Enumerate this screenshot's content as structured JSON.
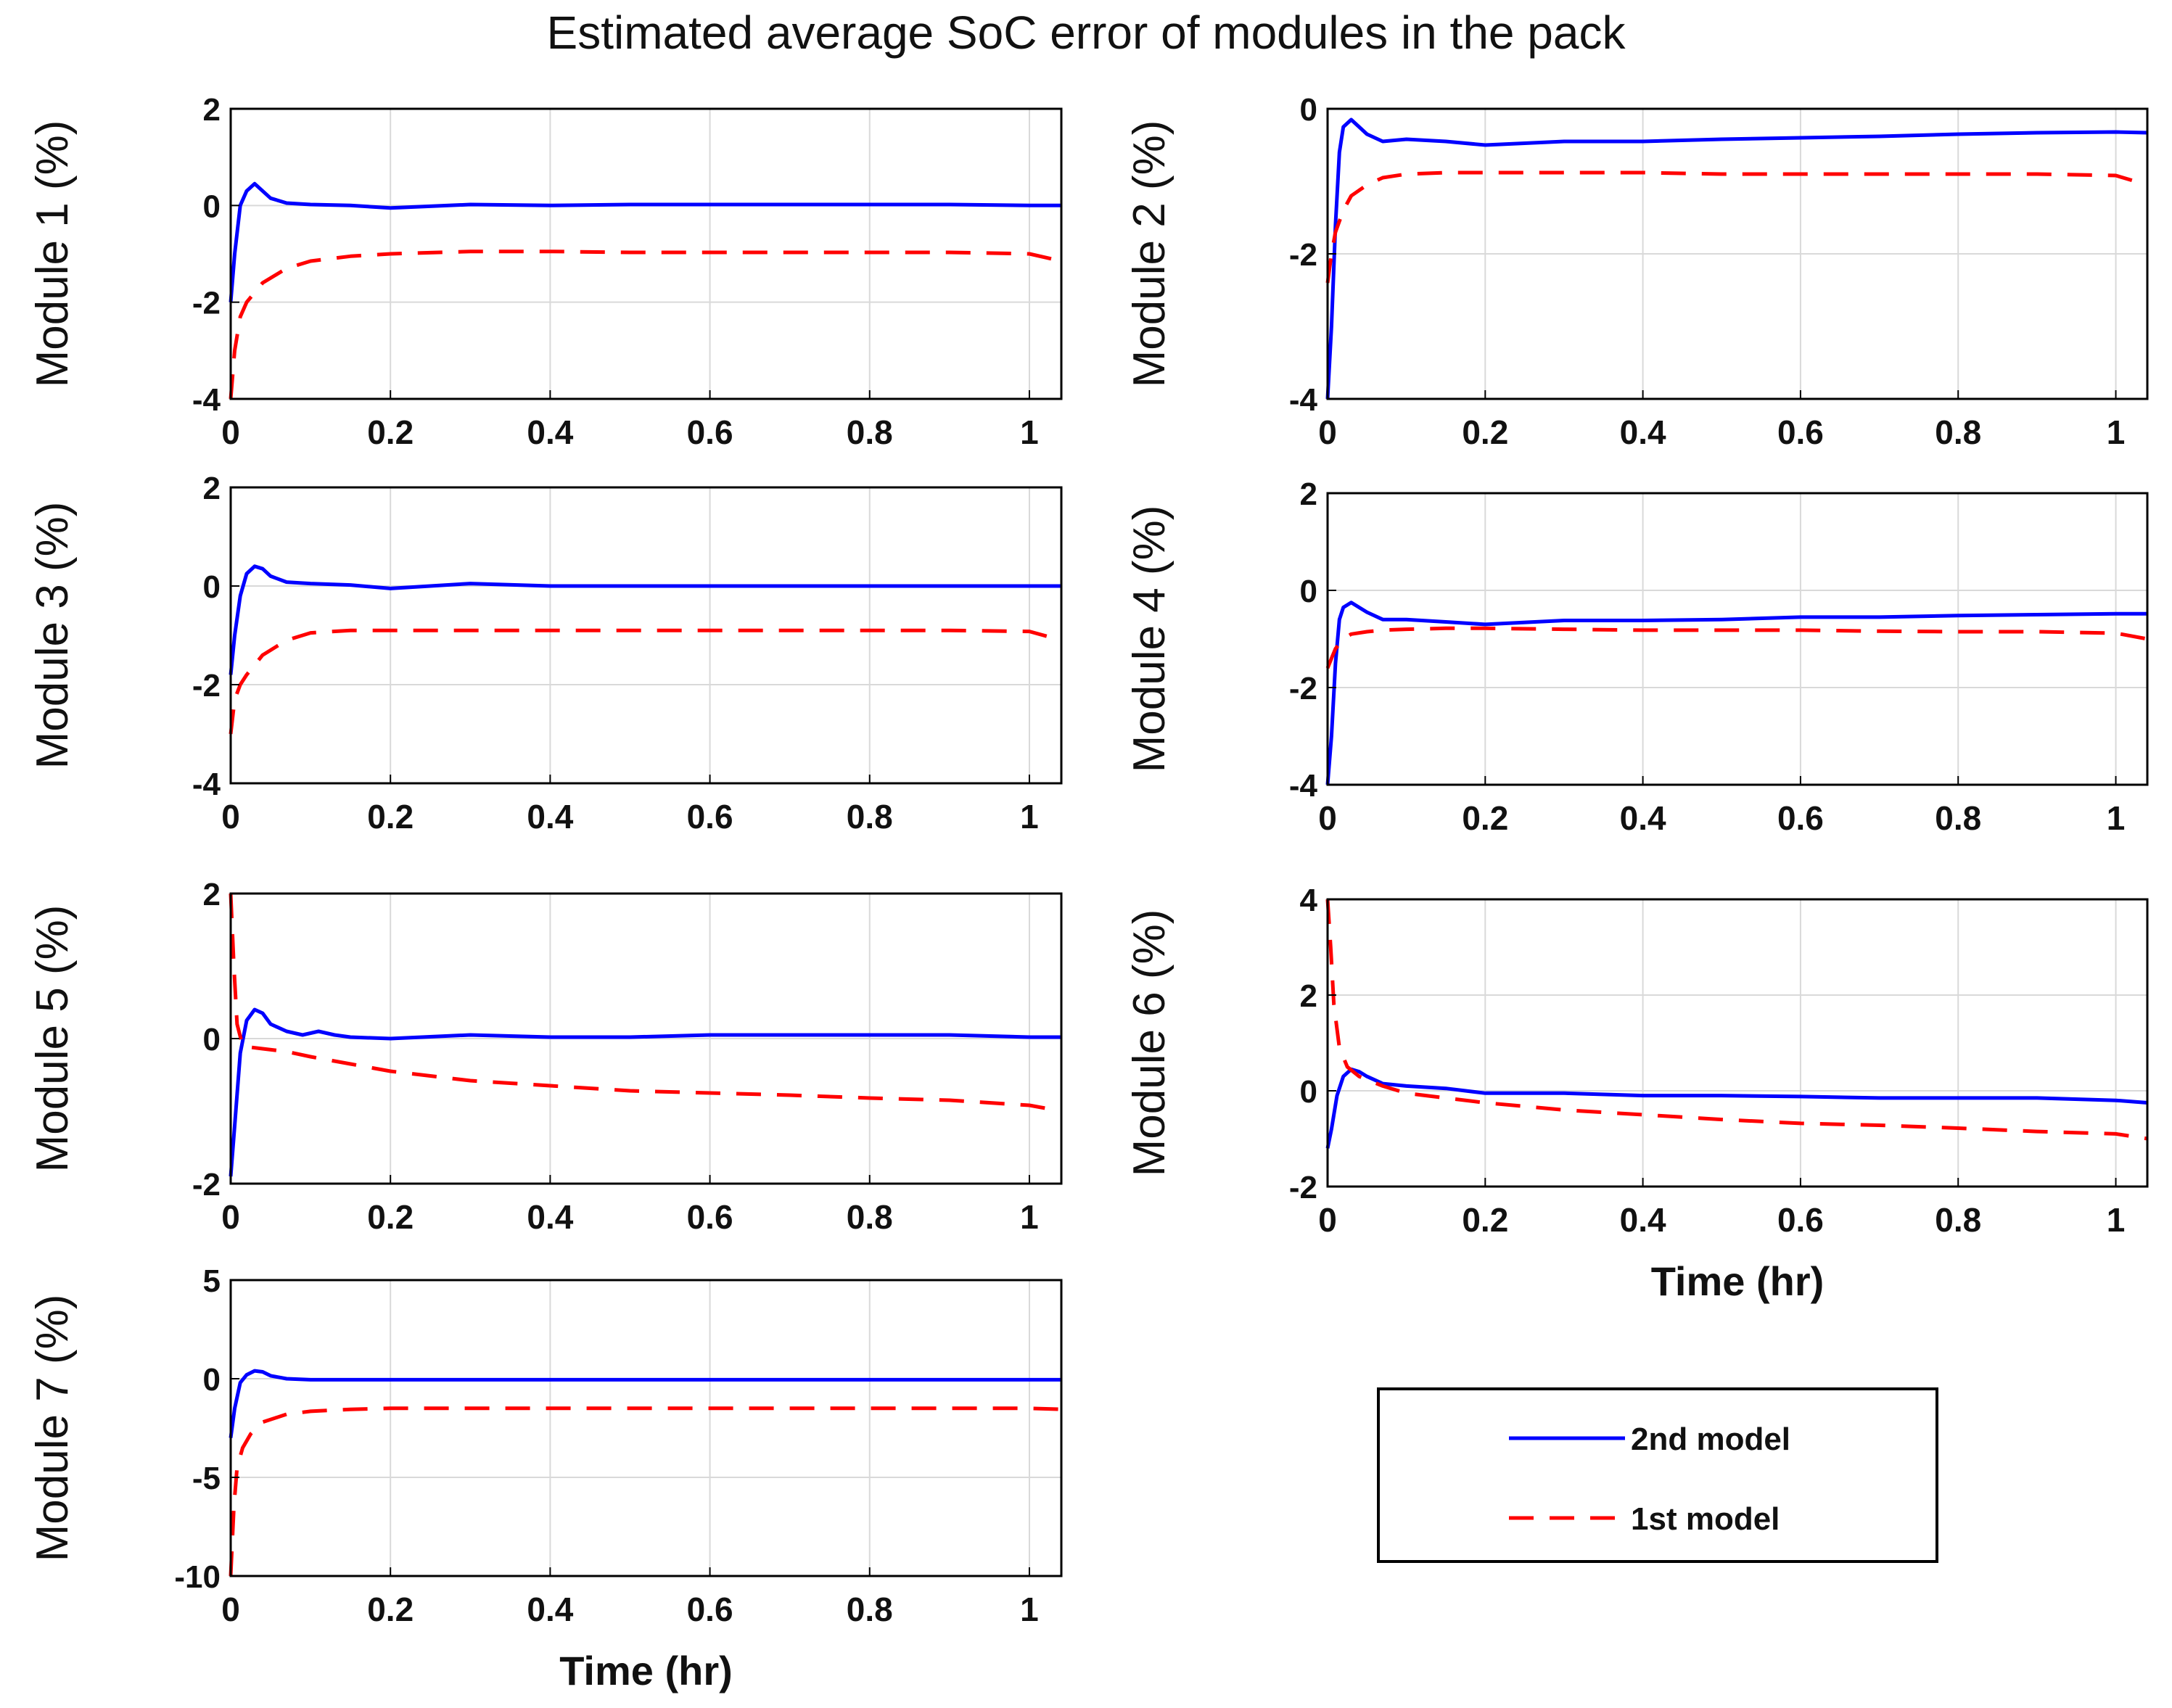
{
  "chart_data": {
    "title": "Estimated average SoC error of modules in the pack",
    "legend": {
      "placement": "bottom-right",
      "entries": [
        {
          "name": "2nd model",
          "style": "solid",
          "color": "#0000ff"
        },
        {
          "name": "1st model",
          "style": "dashed",
          "color": "#ff0000"
        }
      ]
    },
    "colors": {
      "model_2nd": "#0000ff",
      "model_1st": "#ff0000",
      "grid": "#d9d9d9",
      "axis": "#000000"
    },
    "subplots": [
      {
        "type": "line",
        "ylabel": "Module 1 (%)",
        "xlabel": "",
        "xlim": [
          0,
          1.04
        ],
        "ylim": [
          -4,
          2
        ],
        "grid": true,
        "xticks": [
          0,
          0.2,
          0.4,
          0.6,
          0.8,
          1
        ],
        "xtick_labels": [
          "0",
          "0.2",
          "0.4",
          "0.6",
          "0.8",
          "1"
        ],
        "yticks": [
          -4,
          -2,
          0,
          2
        ],
        "ytick_labels": [
          "-4",
          "-2",
          "0",
          "2"
        ],
        "series": [
          {
            "name": "2nd model",
            "x": [
              0,
              0.005,
              0.012,
              0.02,
              0.03,
              0.04,
              0.05,
              0.07,
              0.1,
              0.15,
              0.2,
              0.3,
              0.4,
              0.5,
              0.6,
              0.7,
              0.8,
              0.9,
              1.0,
              1.04
            ],
            "y": [
              -2.0,
              -1.0,
              0.0,
              0.3,
              0.45,
              0.3,
              0.15,
              0.05,
              0.02,
              0.0,
              -0.05,
              0.02,
              0.0,
              0.02,
              0.02,
              0.02,
              0.02,
              0.02,
              0.0,
              0.0
            ]
          },
          {
            "name": "1st model",
            "x": [
              0,
              0.005,
              0.012,
              0.02,
              0.04,
              0.07,
              0.1,
              0.15,
              0.2,
              0.3,
              0.4,
              0.5,
              0.6,
              0.7,
              0.8,
              0.9,
              1.0,
              1.04
            ],
            "y": [
              -4.0,
              -3.0,
              -2.3,
              -2.0,
              -1.6,
              -1.3,
              -1.15,
              -1.05,
              -1.0,
              -0.95,
              -0.95,
              -0.97,
              -0.97,
              -0.97,
              -0.97,
              -0.97,
              -1.0,
              -1.15
            ]
          }
        ]
      },
      {
        "type": "line",
        "ylabel": "Module 2 (%)",
        "xlabel": "",
        "xlim": [
          0,
          1.04
        ],
        "ylim": [
          -4,
          0
        ],
        "grid": true,
        "xticks": [
          0,
          0.2,
          0.4,
          0.6,
          0.8,
          1
        ],
        "xtick_labels": [
          "0",
          "0.2",
          "0.4",
          "0.6",
          "0.8",
          "1"
        ],
        "yticks": [
          -4,
          -2,
          0
        ],
        "ytick_labels": [
          "-4",
          "-2",
          "0"
        ],
        "series": [
          {
            "name": "2nd model",
            "x": [
              0,
              0.005,
              0.01,
              0.015,
              0.02,
              0.03,
              0.04,
              0.05,
              0.07,
              0.1,
              0.15,
              0.2,
              0.3,
              0.4,
              0.5,
              0.6,
              0.7,
              0.8,
              0.9,
              1.0,
              1.04
            ],
            "y": [
              -4.0,
              -3.0,
              -1.6,
              -0.6,
              -0.25,
              -0.15,
              -0.25,
              -0.35,
              -0.45,
              -0.42,
              -0.45,
              -0.5,
              -0.45,
              -0.45,
              -0.42,
              -0.4,
              -0.38,
              -0.35,
              -0.33,
              -0.32,
              -0.33
            ]
          },
          {
            "name": "1st model",
            "x": [
              0,
              0.005,
              0.01,
              0.02,
              0.03,
              0.05,
              0.07,
              0.1,
              0.15,
              0.2,
              0.3,
              0.4,
              0.5,
              0.6,
              0.7,
              0.8,
              0.9,
              1.0,
              1.04
            ],
            "y": [
              -2.4,
              -2.0,
              -1.7,
              -1.4,
              -1.2,
              -1.05,
              -0.95,
              -0.9,
              -0.88,
              -0.88,
              -0.88,
              -0.88,
              -0.9,
              -0.9,
              -0.9,
              -0.9,
              -0.9,
              -0.92,
              -1.05
            ]
          }
        ]
      },
      {
        "type": "line",
        "ylabel": "Module 3 (%)",
        "xlabel": "",
        "xlim": [
          0,
          1.04
        ],
        "ylim": [
          -4,
          2
        ],
        "grid": true,
        "xticks": [
          0,
          0.2,
          0.4,
          0.6,
          0.8,
          1
        ],
        "xtick_labels": [
          "0",
          "0.2",
          "0.4",
          "0.6",
          "0.8",
          "1"
        ],
        "yticks": [
          -4,
          -2,
          0,
          2
        ],
        "ytick_labels": [
          "-4",
          "-2",
          "0",
          "2"
        ],
        "series": [
          {
            "name": "2nd model",
            "x": [
              0,
              0.005,
              0.012,
              0.02,
              0.03,
              0.04,
              0.05,
              0.07,
              0.1,
              0.15,
              0.2,
              0.3,
              0.4,
              0.5,
              0.6,
              0.7,
              0.8,
              0.9,
              1.0,
              1.04
            ],
            "y": [
              -1.8,
              -1.0,
              -0.2,
              0.25,
              0.4,
              0.35,
              0.2,
              0.08,
              0.05,
              0.02,
              -0.05,
              0.05,
              0.0,
              0.0,
              0.0,
              0.0,
              0.0,
              0.0,
              0.0,
              0.0
            ]
          },
          {
            "name": "1st model",
            "x": [
              0,
              0.005,
              0.012,
              0.02,
              0.04,
              0.07,
              0.1,
              0.15,
              0.2,
              0.3,
              0.4,
              0.5,
              0.6,
              0.7,
              0.8,
              0.9,
              1.0,
              1.04
            ],
            "y": [
              -3.0,
              -2.3,
              -2.0,
              -1.8,
              -1.4,
              -1.1,
              -0.95,
              -0.9,
              -0.9,
              -0.9,
              -0.9,
              -0.9,
              -0.9,
              -0.9,
              -0.9,
              -0.9,
              -0.92,
              -1.1
            ]
          }
        ]
      },
      {
        "type": "line",
        "ylabel": "Module 4 (%)",
        "xlabel": "",
        "xlim": [
          0,
          1.04
        ],
        "ylim": [
          -4,
          2
        ],
        "grid": true,
        "xticks": [
          0,
          0.2,
          0.4,
          0.6,
          0.8,
          1
        ],
        "xtick_labels": [
          "0",
          "0.2",
          "0.4",
          "0.6",
          "0.8",
          "1"
        ],
        "yticks": [
          -4,
          -2,
          0,
          2
        ],
        "ytick_labels": [
          "-4",
          "-2",
          "0",
          "2"
        ],
        "series": [
          {
            "name": "2nd model",
            "x": [
              0,
              0.005,
              0.01,
              0.015,
              0.02,
              0.03,
              0.04,
              0.05,
              0.07,
              0.1,
              0.15,
              0.2,
              0.3,
              0.4,
              0.5,
              0.6,
              0.7,
              0.8,
              0.9,
              1.0,
              1.04
            ],
            "y": [
              -4.0,
              -3.0,
              -1.5,
              -0.6,
              -0.35,
              -0.25,
              -0.35,
              -0.45,
              -0.6,
              -0.6,
              -0.65,
              -0.7,
              -0.62,
              -0.62,
              -0.6,
              -0.55,
              -0.55,
              -0.52,
              -0.5,
              -0.48,
              -0.48
            ]
          },
          {
            "name": "1st model",
            "x": [
              0,
              0.005,
              0.01,
              0.02,
              0.03,
              0.05,
              0.07,
              0.1,
              0.15,
              0.2,
              0.3,
              0.4,
              0.5,
              0.6,
              0.7,
              0.8,
              0.9,
              1.0,
              1.04
            ],
            "y": [
              -1.6,
              -1.4,
              -1.2,
              -1.0,
              -0.9,
              -0.85,
              -0.82,
              -0.8,
              -0.78,
              -0.78,
              -0.8,
              -0.82,
              -0.82,
              -0.82,
              -0.84,
              -0.85,
              -0.85,
              -0.88,
              -1.0
            ]
          }
        ]
      },
      {
        "type": "line",
        "ylabel": "Module 5 (%)",
        "xlabel": "",
        "xlim": [
          0,
          1.04
        ],
        "ylim": [
          -2,
          2
        ],
        "grid": true,
        "xticks": [
          0,
          0.2,
          0.4,
          0.6,
          0.8,
          1
        ],
        "xtick_labels": [
          "0",
          "0.2",
          "0.4",
          "0.6",
          "0.8",
          "1"
        ],
        "yticks": [
          -2,
          0,
          2
        ],
        "ytick_labels": [
          "-2",
          "0",
          "2"
        ],
        "series": [
          {
            "name": "2nd model",
            "x": [
              0,
              0.005,
              0.012,
              0.02,
              0.03,
              0.04,
              0.05,
              0.07,
              0.09,
              0.11,
              0.13,
              0.15,
              0.2,
              0.3,
              0.4,
              0.5,
              0.6,
              0.7,
              0.8,
              0.9,
              1.0,
              1.04
            ],
            "y": [
              -1.9,
              -1.2,
              -0.2,
              0.25,
              0.4,
              0.35,
              0.2,
              0.1,
              0.05,
              0.1,
              0.05,
              0.02,
              0.0,
              0.05,
              0.02,
              0.02,
              0.05,
              0.05,
              0.05,
              0.05,
              0.02,
              0.02
            ]
          },
          {
            "name": "1st model",
            "x": [
              0,
              0.004,
              0.008,
              0.015,
              0.025,
              0.04,
              0.07,
              0.1,
              0.15,
              0.2,
              0.3,
              0.4,
              0.5,
              0.6,
              0.7,
              0.8,
              0.9,
              1.0,
              1.04
            ],
            "y": [
              2.0,
              1.0,
              0.2,
              -0.1,
              -0.12,
              -0.14,
              -0.18,
              -0.25,
              -0.35,
              -0.45,
              -0.58,
              -0.65,
              -0.72,
              -0.75,
              -0.78,
              -0.82,
              -0.85,
              -0.92,
              -1.0
            ]
          }
        ]
      },
      {
        "type": "line",
        "ylabel": "Module 6 (%)",
        "xlabel": "Time (hr)",
        "xlim": [
          0,
          1.04
        ],
        "ylim": [
          -2,
          4
        ],
        "grid": true,
        "xticks": [
          0,
          0.2,
          0.4,
          0.6,
          0.8,
          1
        ],
        "xtick_labels": [
          "0",
          "0.2",
          "0.4",
          "0.6",
          "0.8",
          "1"
        ],
        "yticks": [
          -2,
          0,
          2,
          4
        ],
        "ytick_labels": [
          "-2",
          "0",
          "2",
          "4"
        ],
        "series": [
          {
            "name": "2nd model",
            "x": [
              0,
              0.005,
              0.012,
              0.02,
              0.03,
              0.04,
              0.05,
              0.07,
              0.1,
              0.15,
              0.2,
              0.3,
              0.4,
              0.5,
              0.6,
              0.7,
              0.8,
              0.9,
              1.0,
              1.04
            ],
            "y": [
              -1.2,
              -0.8,
              -0.1,
              0.3,
              0.45,
              0.4,
              0.3,
              0.15,
              0.1,
              0.05,
              -0.05,
              -0.05,
              -0.1,
              -0.1,
              -0.12,
              -0.15,
              -0.15,
              -0.15,
              -0.2,
              -0.25
            ]
          },
          {
            "name": "1st model",
            "x": [
              0,
              0.004,
              0.008,
              0.015,
              0.025,
              0.04,
              0.07,
              0.1,
              0.15,
              0.2,
              0.3,
              0.4,
              0.5,
              0.6,
              0.7,
              0.8,
              0.9,
              1.0,
              1.04
            ],
            "y": [
              4.0,
              3.0,
              1.8,
              0.9,
              0.5,
              0.3,
              0.1,
              -0.05,
              -0.15,
              -0.25,
              -0.4,
              -0.5,
              -0.6,
              -0.68,
              -0.72,
              -0.78,
              -0.85,
              -0.9,
              -1.0
            ]
          }
        ]
      },
      {
        "type": "line",
        "ylabel": "Module 7 (%)",
        "xlabel": "Time (hr)",
        "xlim": [
          0,
          1.04
        ],
        "ylim": [
          -10,
          5
        ],
        "grid": true,
        "xticks": [
          0,
          0.2,
          0.4,
          0.6,
          0.8,
          1
        ],
        "xtick_labels": [
          "0",
          "0.2",
          "0.4",
          "0.6",
          "0.8",
          "1"
        ],
        "yticks": [
          -10,
          -5,
          0,
          5
        ],
        "ytick_labels": [
          "-10",
          "-5",
          "0",
          "5"
        ],
        "series": [
          {
            "name": "2nd model",
            "x": [
              0,
              0.005,
              0.012,
              0.02,
              0.03,
              0.04,
              0.05,
              0.07,
              0.1,
              0.15,
              0.2,
              0.3,
              0.4,
              0.5,
              0.6,
              0.7,
              0.8,
              0.9,
              1.0,
              1.04
            ],
            "y": [
              -3.0,
              -1.5,
              -0.2,
              0.2,
              0.4,
              0.35,
              0.15,
              0.0,
              -0.05,
              -0.05,
              -0.05,
              -0.05,
              -0.05,
              -0.05,
              -0.05,
              -0.05,
              -0.05,
              -0.05,
              -0.05,
              -0.05
            ]
          },
          {
            "name": "1st model",
            "x": [
              0,
              0.004,
              0.008,
              0.015,
              0.025,
              0.04,
              0.07,
              0.1,
              0.15,
              0.2,
              0.3,
              0.4,
              0.5,
              0.6,
              0.7,
              0.8,
              0.9,
              1.0,
              1.04
            ],
            "y": [
              -10.0,
              -6.5,
              -4.5,
              -3.5,
              -2.8,
              -2.2,
              -1.8,
              -1.65,
              -1.55,
              -1.5,
              -1.5,
              -1.5,
              -1.5,
              -1.5,
              -1.5,
              -1.5,
              -1.5,
              -1.5,
              -1.55
            ]
          }
        ]
      }
    ]
  }
}
